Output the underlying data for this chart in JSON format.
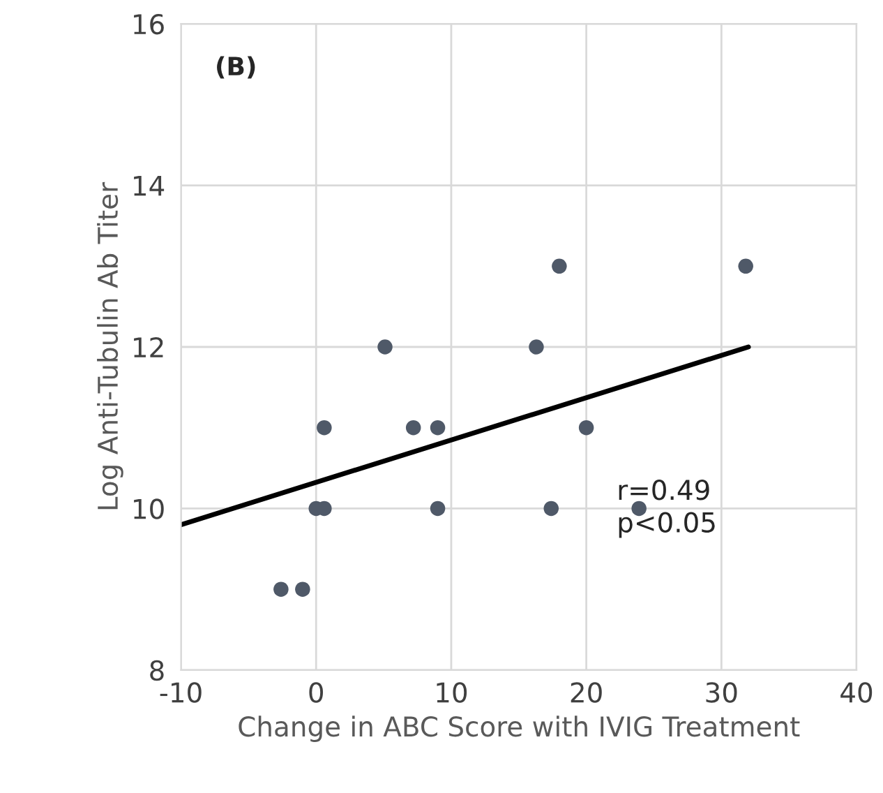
{
  "chart_data": {
    "type": "scatter",
    "xlabel": "Change in ABC Score with IVIG Treatment",
    "ylabel": "Log Anti-Tubulin Ab Titer",
    "series": [
      {
        "color": "#4f5968",
        "marker": "circle",
        "x": [
          -2.6,
          -1.0,
          0,
          0.6,
          0.6,
          5.1,
          7.2,
          9.0,
          9.0,
          16.3,
          18.0,
          17.4,
          20.0,
          23.9,
          31.8
        ],
        "values": [
          9,
          9,
          10,
          10,
          11,
          12,
          11,
          11,
          10,
          12,
          13,
          10,
          11,
          10,
          13
        ]
      },
      {
        "type": "line",
        "color": "#000000",
        "x": [
          -10,
          32
        ],
        "values": [
          9.8,
          12
        ]
      }
    ],
    "annotations": [
      "(B)",
      "r=0.49\np<0.05"
    ],
    "xlim": [
      -10,
      40
    ],
    "xticks": [
      -10,
      0,
      10,
      20,
      30,
      40
    ],
    "ylim": [
      8,
      16
    ],
    "yticks": [
      8,
      10,
      12,
      14,
      16
    ],
    "grid": true
  }
}
